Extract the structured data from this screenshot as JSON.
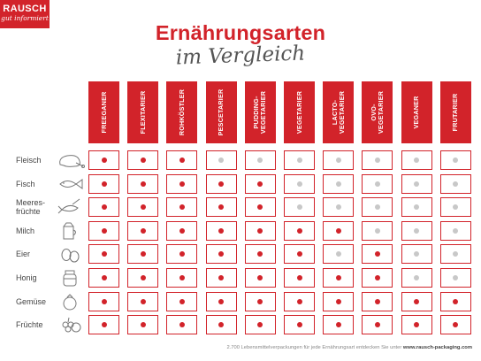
{
  "logo": {
    "line1": "RAUSCH",
    "line2": "gut informiert"
  },
  "title": "Ernährungsarten",
  "subtitle": "im Vergleich",
  "columns": [
    "FREEGANER",
    "FLEXITARIER",
    "ROHKÖSTLER",
    "PESCETARIER",
    "PUDDING-\nVEGETARIER",
    "VEGETARIER",
    "LACTO-\nVEGETARIER",
    "OVO-\nVEGETARIER",
    "VEGANER",
    "FRUTARIER"
  ],
  "rows": [
    {
      "label": "Fleisch",
      "icon": "meat-icon",
      "values": [
        1,
        1,
        1,
        0,
        0,
        0,
        0,
        0,
        0,
        0
      ]
    },
    {
      "label": "Fisch",
      "icon": "fish-icon",
      "values": [
        1,
        1,
        1,
        1,
        1,
        0,
        0,
        0,
        0,
        0
      ]
    },
    {
      "label": "Meeres-\nfrüchte",
      "icon": "seafood-icon",
      "values": [
        1,
        1,
        1,
        1,
        1,
        0,
        0,
        0,
        0,
        0
      ]
    },
    {
      "label": "Milch",
      "icon": "milk-icon",
      "values": [
        1,
        1,
        1,
        1,
        1,
        1,
        1,
        0,
        0,
        0
      ]
    },
    {
      "label": "Eier",
      "icon": "eggs-icon",
      "values": [
        1,
        1,
        1,
        1,
        1,
        1,
        0,
        1,
        0,
        0
      ]
    },
    {
      "label": "Honig",
      "icon": "honey-icon",
      "values": [
        1,
        1,
        1,
        1,
        1,
        1,
        1,
        1,
        0,
        0
      ]
    },
    {
      "label": "Gemüse",
      "icon": "vegetables-icon",
      "values": [
        1,
        1,
        1,
        1,
        1,
        1,
        1,
        1,
        1,
        1
      ]
    },
    {
      "label": "Früchte",
      "icon": "fruits-icon",
      "values": [
        1,
        1,
        1,
        1,
        1,
        1,
        1,
        1,
        1,
        1
      ]
    }
  ],
  "colors": {
    "brand": "#d2232a",
    "inactive_dot": "#c8c8c8"
  },
  "footer": {
    "text": "2.700 Lebensmittelverpackungen für jede Ernährungsart entdecken Sie unter ",
    "link": "www.rausch-packaging.com"
  }
}
